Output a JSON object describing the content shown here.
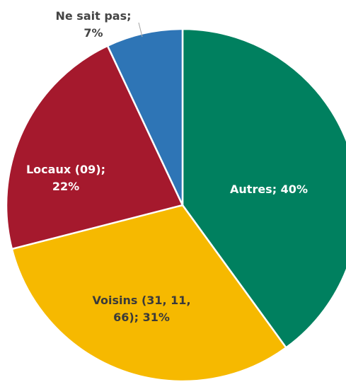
{
  "chart_data": {
    "type": "pie",
    "values": [
      40,
      31,
      22,
      7
    ],
    "value_labels": [
      "Autres; 40%",
      "Voisins (31, 11, 66); 31%",
      "Locaux (09); 22%",
      "Ne sait pas; 7%"
    ],
    "colors": [
      "#00805f",
      "#f6b900",
      "#a5192d",
      "#2e75b6"
    ]
  }
}
